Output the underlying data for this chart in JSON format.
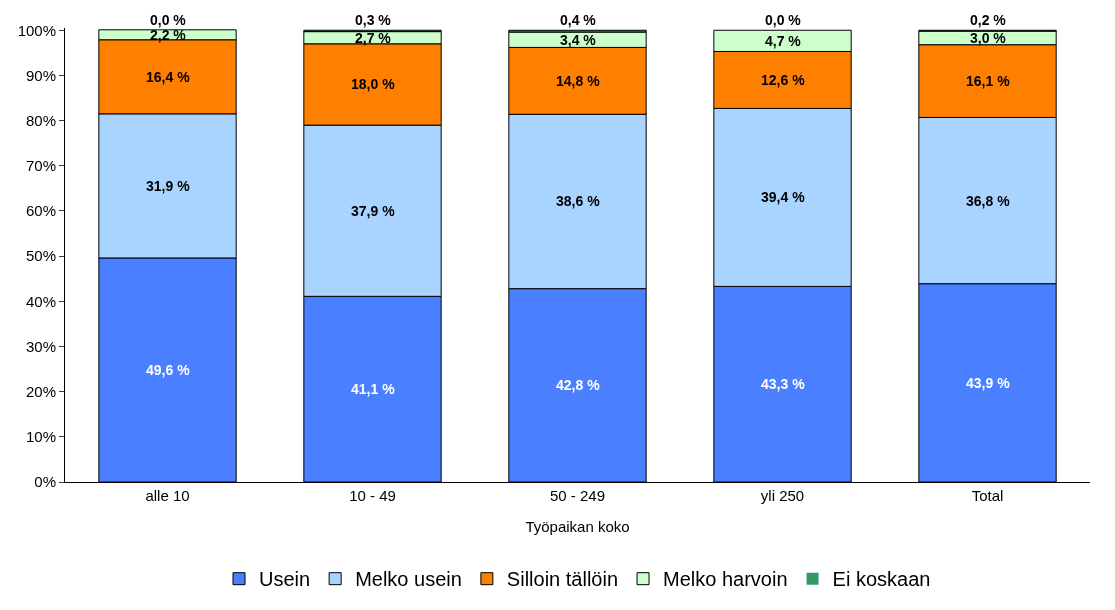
{
  "chart_data": {
    "type": "bar",
    "stacked": true,
    "xlabel": "Työpaikan koko",
    "categories": [
      "alle 10",
      "10 - 49",
      "50 - 249",
      "yli 250",
      "Total"
    ],
    "series": [
      {
        "name": "Usein",
        "color": "#4a7fff",
        "values": [
          49.6,
          41.1,
          42.8,
          43.3,
          43.9
        ],
        "value_labels": [
          "49,6 %",
          "41,1 %",
          "42,8 %",
          "43,3 %",
          "43,9 %"
        ]
      },
      {
        "name": "Melko usein",
        "color": "#a8d4ff",
        "values": [
          31.9,
          37.9,
          38.6,
          39.4,
          36.8
        ],
        "value_labels": [
          "31,9 %",
          "37,9 %",
          "38,6 %",
          "39,4 %",
          "36,8 %"
        ]
      },
      {
        "name": "Silloin tällöin",
        "color": "#ff7f00",
        "values": [
          16.4,
          18.0,
          14.8,
          12.6,
          16.1
        ],
        "value_labels": [
          "16,4 %",
          "18,0 %",
          "14,8 %",
          "12,6 %",
          "16,1 %"
        ]
      },
      {
        "name": "Melko harvoin",
        "color": "#ccffcc",
        "values": [
          2.2,
          2.7,
          3.4,
          4.7,
          3.0
        ],
        "value_labels": [
          "2,2 %",
          "2,7 %",
          "3,4 %",
          "4,7 %",
          "3,0 %"
        ]
      },
      {
        "name": "Ei koskaan",
        "color": "#339966",
        "values": [
          0.0,
          0.3,
          0.4,
          0.0,
          0.2
        ],
        "value_labels": [
          "0,0 %",
          "0,3 %",
          "0,4 %",
          "0,0 %",
          "0,2 %"
        ]
      }
    ],
    "ylim": [
      0,
      100.5
    ],
    "yticks": [
      {
        "value": 0,
        "label": "0%"
      },
      {
        "value": 10,
        "label": "10%"
      },
      {
        "value": 20,
        "label": "20%"
      },
      {
        "value": 30,
        "label": "30%"
      },
      {
        "value": 40,
        "label": "40%"
      },
      {
        "value": 50,
        "label": "50%"
      },
      {
        "value": 60,
        "label": "60%"
      },
      {
        "value": 70,
        "label": "70%"
      },
      {
        "value": 80,
        "label": "80%"
      },
      {
        "value": 90,
        "label": "90%"
      },
      {
        "value": 100,
        "label": "100%"
      }
    ],
    "legend": "bottom"
  }
}
